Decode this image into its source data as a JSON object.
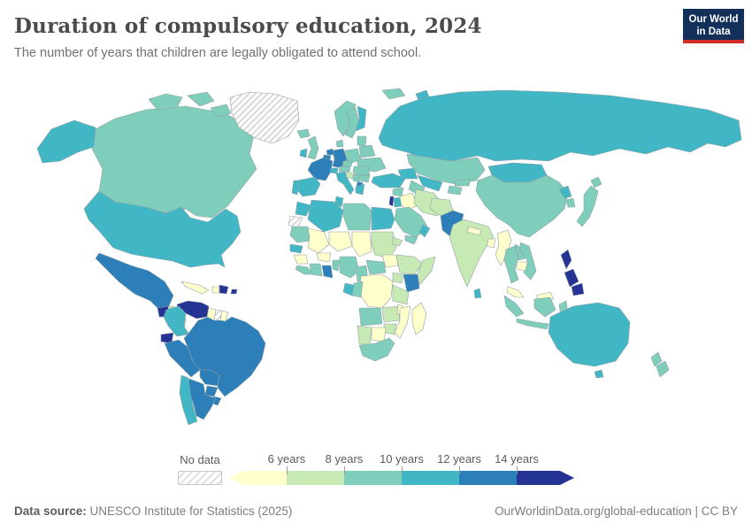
{
  "header": {
    "title": "Duration of compulsory education, 2024",
    "subtitle": "The number of years that children are legally obligated to attend school.",
    "logo": {
      "line1": "Our World",
      "line2": "in Data",
      "bg_color": "#12305a",
      "accent_color": "#cf2d24"
    }
  },
  "legend": {
    "no_data_label": "No data",
    "tick_labels": [
      "6 years",
      "8 years",
      "10 years",
      "12 years",
      "14 years"
    ]
  },
  "footer": {
    "source_label": "Data source:",
    "source_text": " UNESCO Institute for Statistics (2025)",
    "url_text": "OurWorldinData.org/global-education | CC BY"
  },
  "chart_data": {
    "type": "choropleth",
    "title": "Duration of compulsory education, 2024",
    "metric": "Years of compulsory education",
    "unit": "years",
    "projection": "world",
    "legend_position": "bottom",
    "no_data_style": "diagonal-hatch",
    "bins": [
      {
        "id": "lt6",
        "label": "under 6 years",
        "color": "#ffffcc"
      },
      {
        "id": "6-8",
        "label": "6-8 years",
        "color": "#c7e9b4"
      },
      {
        "id": "8-10",
        "label": "8-10 years",
        "color": "#7fcdbb"
      },
      {
        "id": "10-12",
        "label": "10-12 years",
        "color": "#41b6c4"
      },
      {
        "id": "12-14",
        "label": "12-14 years",
        "color": "#2c7fb8"
      },
      {
        "id": "14plus",
        "label": "14+ years",
        "color": "#253494"
      }
    ],
    "countries": {
      "greenland": "no-data",
      "suriname": "no-data",
      "western-sahara": "no-data",
      "canada": "8-10",
      "united-states": "10-12",
      "mexico": "12-14",
      "guatemala": "14plus",
      "belize": "6-8",
      "honduras": "14plus",
      "nicaragua": "6-8",
      "costa-rica": "10-12",
      "panama": "10-12",
      "cuba": "lt6",
      "haiti": "lt6",
      "dominican-republic": "14plus",
      "puerto-rico": "14plus",
      "venezuela": "14plus",
      "colombia": "10-12",
      "guyana": "lt6",
      "french-guiana": "lt6",
      "ecuador": "14plus",
      "peru": "12-14",
      "brazil": "12-14",
      "bolivia": "12-14",
      "paraguay": "12-14",
      "chile": "10-12",
      "argentina": "12-14",
      "uruguay": "12-14",
      "iceland": "8-10",
      "united-kingdom": "8-10",
      "ireland": "10-12",
      "norway": "8-10",
      "sweden": "8-10",
      "finland": "10-12",
      "denmark": "8-10",
      "svalbard": "8-10",
      "baltics": "8-10",
      "france": "12-14",
      "netherlands": "12-14",
      "belgium": "12-14",
      "germany": "12-14",
      "switzerland": "10-12",
      "austria": "8-10",
      "czechia": "8-10",
      "poland": "8-10",
      "spain": "10-12",
      "portugal": "10-12",
      "italy": "10-12",
      "croatia": "6-8",
      "serbia": "8-10",
      "north-macedonia": "12-14",
      "greece": "10-12",
      "bulgaria": "8-10",
      "romania": "8-10",
      "ukraine": "8-10",
      "belarus": "8-10",
      "russia": "10-12",
      "turkey": "10-12",
      "azerbaijan": "10-12",
      "syria": "8-10",
      "iraq": "lt6",
      "iran": "6-8",
      "israel": "14plus",
      "jordan": "10-12",
      "saudi-arabia": "8-10",
      "yemen": "8-10",
      "oman": "10-12",
      "kazakhstan": "8-10",
      "uzbekistan": "10-12",
      "turkmenistan": "8-10",
      "kyrgyzstan": "8-10",
      "tajikistan": "8-10",
      "afghanistan": "6-8",
      "pakistan": "12-14",
      "india": "6-8",
      "nepal": "lt6",
      "bangladesh": "lt6",
      "sri-lanka": "10-12",
      "myanmar": "lt6",
      "thailand": "8-10",
      "laos": "8-10",
      "cambodia": "lt6",
      "vietnam": "8-10",
      "malaysia": "lt6",
      "indonesia": "8-10",
      "philippines": "14plus",
      "mongolia": "10-12",
      "china": "8-10",
      "north-korea": "10-12",
      "south-korea": "8-10",
      "japan": "8-10",
      "papua-new-guinea": "lt6",
      "australia": "10-12",
      "new-zealand": "8-10",
      "morocco": "10-12",
      "algeria": "10-12",
      "tunisia": "10-12",
      "libya": "8-10",
      "egypt": "10-12",
      "mauritania": "8-10",
      "mali": "lt6",
      "niger": "lt6",
      "chad": "lt6",
      "sudan": "6-8",
      "eritrea": "6-8",
      "south-sudan": "lt6",
      "senegal": "10-12",
      "guinea": "lt6",
      "liberia": "8-10",
      "ivory-coast": "8-10",
      "burkina-faso": "lt6",
      "ghana": "12-14",
      "benin": "8-10",
      "nigeria": "8-10",
      "cameroon": "8-10",
      "central-african-republic": "8-10",
      "ethiopia": "6-8",
      "somalia": "6-8",
      "uganda": "6-8",
      "kenya": "12-14",
      "dr-congo": "lt6",
      "congo": "8-10",
      "gabon": "10-12",
      "tanzania": "6-8",
      "angola": "8-10",
      "zambia": "6-8",
      "malawi": "lt6",
      "mozambique": "lt6",
      "zimbabwe": "6-8",
      "botswana": "lt6",
      "namibia": "6-8",
      "south-africa": "8-10",
      "madagascar": "lt6"
    }
  }
}
